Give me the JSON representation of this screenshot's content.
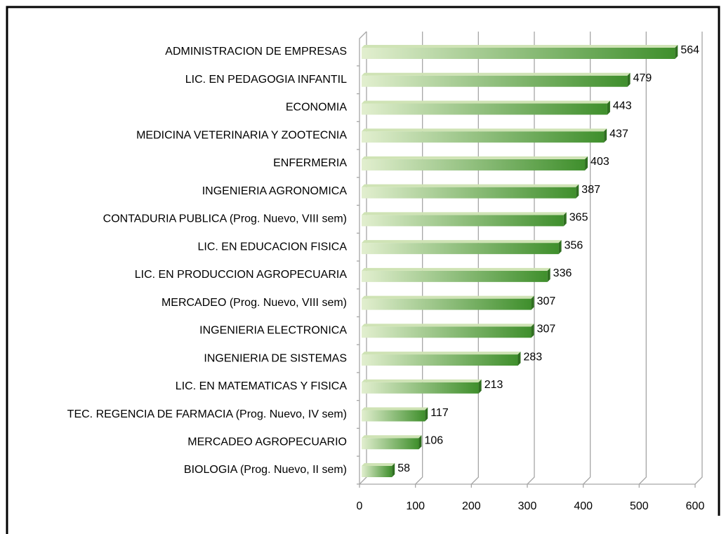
{
  "chart_data": {
    "type": "bar",
    "orientation": "horizontal",
    "categories": [
      "ADMINISTRACION DE EMPRESAS",
      "LIC. EN PEDAGOGIA INFANTIL",
      "ECONOMIA",
      "MEDICINA VETERINARIA Y ZOOTECNIA",
      "ENFERMERIA",
      "INGENIERIA AGRONOMICA",
      "CONTADURIA PUBLICA  (Prog. Nuevo, VIII sem)",
      "LIC. EN EDUCACION FISICA",
      "LIC. EN PRODUCCION AGROPECUARIA",
      "MERCADEO (Prog. Nuevo, VIII sem)",
      "INGENIERIA ELECTRONICA",
      "INGENIERIA DE SISTEMAS",
      "LIC. EN MATEMATICAS Y FISICA",
      "TEC. REGENCIA DE FARMACIA (Prog. Nuevo, IV sem)",
      "MERCADEO AGROPECUARIO",
      "BIOLOGIA (Prog. Nuevo, II sem)"
    ],
    "values": [
      564,
      479,
      443,
      437,
      403,
      387,
      365,
      356,
      336,
      307,
      307,
      283,
      213,
      117,
      106,
      58
    ],
    "color": "#3f8f2c",
    "xlim": [
      0,
      600
    ],
    "xticks": [
      0,
      100,
      200,
      300,
      400,
      500,
      600
    ],
    "grid": true
  }
}
